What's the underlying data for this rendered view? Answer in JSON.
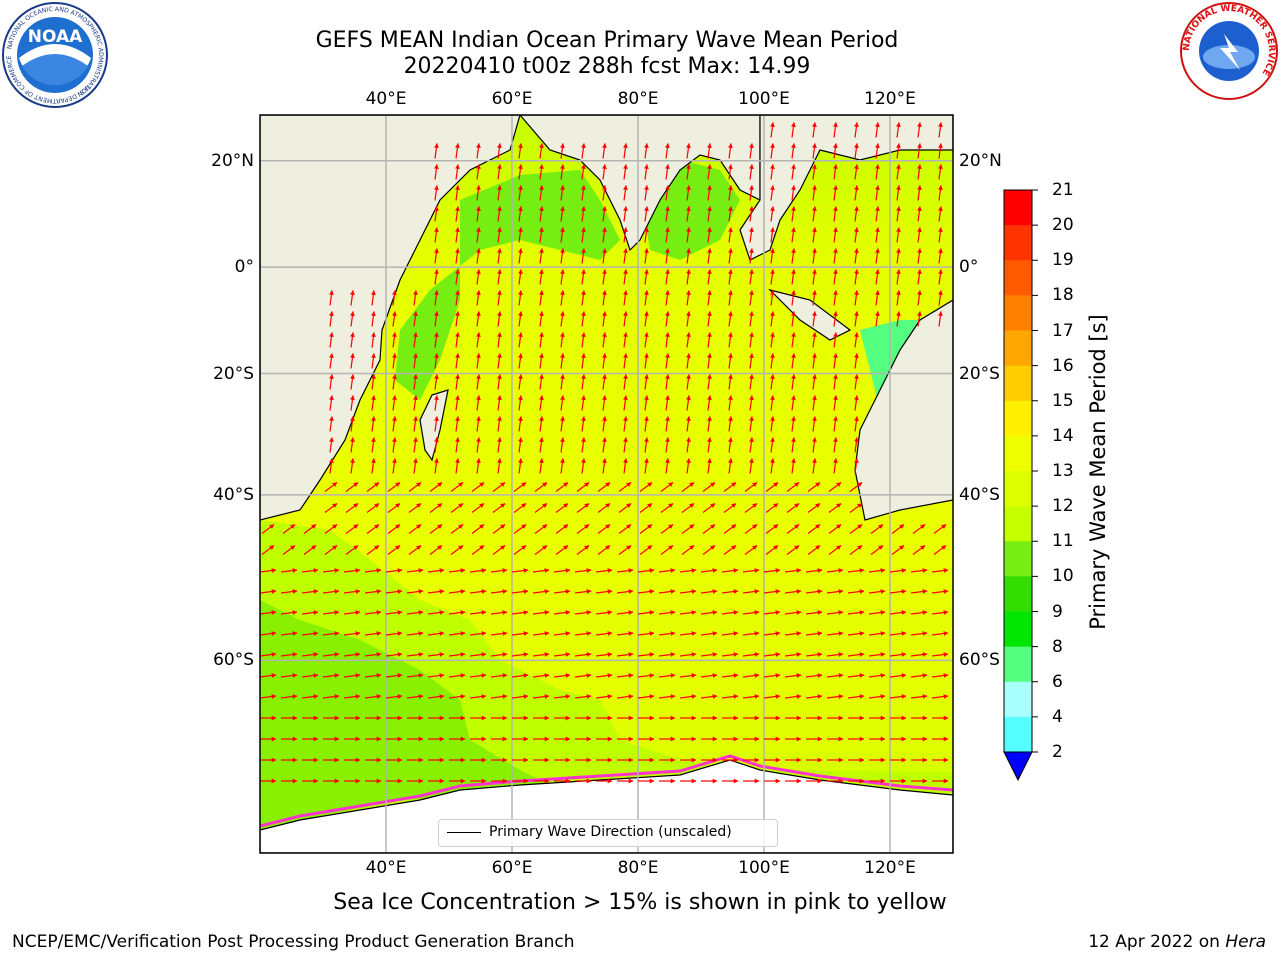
{
  "title_line1": "GEFS MEAN Indian Ocean Primary Wave Mean Period",
  "title_line2": "20220410 t00z 288h fcst   Max: 14.99",
  "logos": {
    "noaa_text": "NOAA",
    "noaa_ring": "NATIONAL OCEANIC AND ATMOSPHERIC ADMINISTRATION",
    "noaa_ring_bottom": "U.S. DEPARTMENT OF COMMERCE",
    "nws_ring": "NATIONAL WEATHER SERVICE"
  },
  "map": {
    "lon_ticks": [
      "40°E",
      "60°E",
      "80°E",
      "100°E",
      "120°E"
    ],
    "lat_ticks": [
      "20°N",
      "0°",
      "20°S",
      "40°S",
      "60°S"
    ],
    "lon_values": [
      40,
      60,
      80,
      100,
      120
    ],
    "lat_values": [
      20,
      0,
      -20,
      -40,
      -60
    ],
    "extent": {
      "lon_min": 20,
      "lon_max": 130,
      "lat_min": -74,
      "lat_max": 28
    },
    "land_color": "#efefdf",
    "ocean_dominant_color": "#e6ff00",
    "arrow_color": "#ff0000"
  },
  "legend_label": "Primary Wave Direction (unscaled)",
  "colorbar": {
    "title": "Primary Wave Mean Period [s]",
    "labels": [
      "21",
      "20",
      "19",
      "18",
      "17",
      "16",
      "15",
      "14",
      "13",
      "12",
      "11",
      "10",
      "9",
      "8",
      "6",
      "4",
      "2"
    ],
    "colors": [
      "#ff0000",
      "#ff3300",
      "#ff5a00",
      "#ff8000",
      "#ffa600",
      "#ffcc00",
      "#fff000",
      "#eeff00",
      "#ddff00",
      "#c6ff00",
      "#77ee11",
      "#33dd00",
      "#00e600",
      "#55ff80",
      "#aaffff",
      "#55ffff",
      "#00ffff",
      "#00d2ff",
      "#0055ff"
    ],
    "under_color": "#0000ff"
  },
  "caption": "Sea Ice Concentration > 15% is shown in pink to yellow",
  "footer_left": "NCEP/EMC/Verification Post Processing Product Generation Branch",
  "footer_date": "12 Apr 2022 on",
  "footer_host": "Hera"
}
